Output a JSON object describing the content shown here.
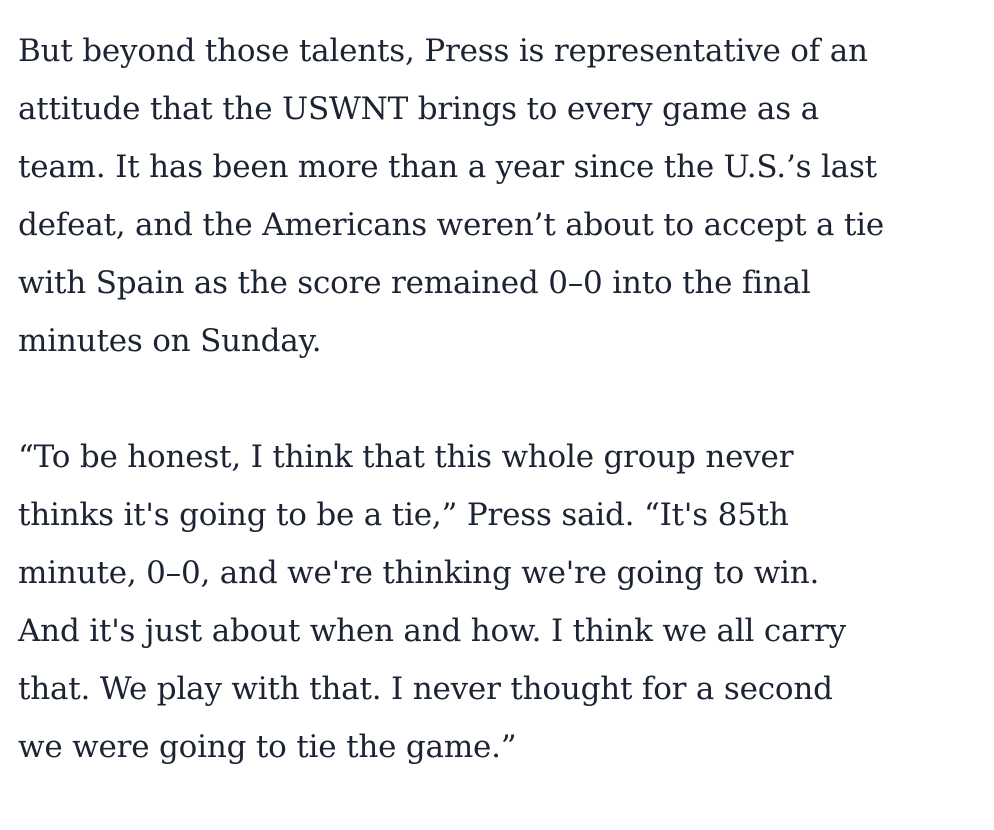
{
  "article": {
    "paragraphs": [
      {
        "lines": [
          "But beyond those talents, Press is representative of an",
          "attitude that the USWNT brings to every game as a",
          "team. It has been more than a year since the U.S.’s last",
          "defeat, and the Americans weren’t about to accept a tie",
          "with Spain as the score remained 0–0 into the final",
          "minutes on Sunday."
        ]
      },
      {
        "lines": [
          "“To be honest, I think that this whole group never",
          "thinks it's going to be a tie,” Press said. “It's 85th",
          "minute, 0–0, and we're thinking we're going to win.",
          "And it's just about when and how. I think we all carry",
          "that. We play with that. I never thought for a second",
          "we were going to tie the game.”"
        ]
      }
    ]
  }
}
